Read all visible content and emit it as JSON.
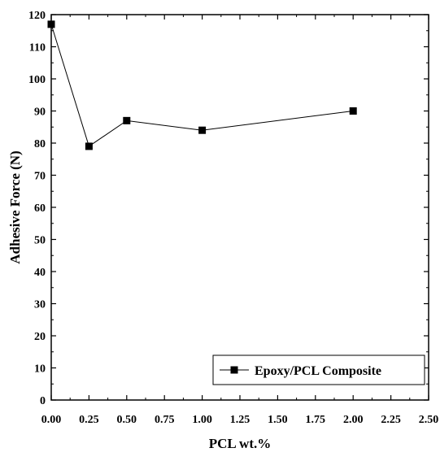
{
  "chart_data": {
    "type": "line",
    "title": "",
    "xlabel": "PCL wt.%",
    "ylabel": "Adhesive Force (N)",
    "xlim": [
      0,
      2.5
    ],
    "ylim": [
      0,
      120
    ],
    "x_ticks": [
      "0.00",
      "0.25",
      "0.50",
      "0.75",
      "1.00",
      "1.25",
      "1.50",
      "1.75",
      "2.00",
      "2.25",
      "2.50"
    ],
    "y_ticks": [
      "0",
      "10",
      "20",
      "30",
      "40",
      "50",
      "60",
      "70",
      "80",
      "90",
      "100",
      "110",
      "120"
    ],
    "grid": false,
    "legend_position": "bottom-right",
    "series": [
      {
        "name": "Epoxy/PCL Composite",
        "marker": "square",
        "color": "#000000",
        "x": [
          0,
          0.25,
          0.5,
          1.0,
          2.0
        ],
        "y": [
          117,
          79,
          87,
          84,
          90
        ]
      }
    ]
  }
}
